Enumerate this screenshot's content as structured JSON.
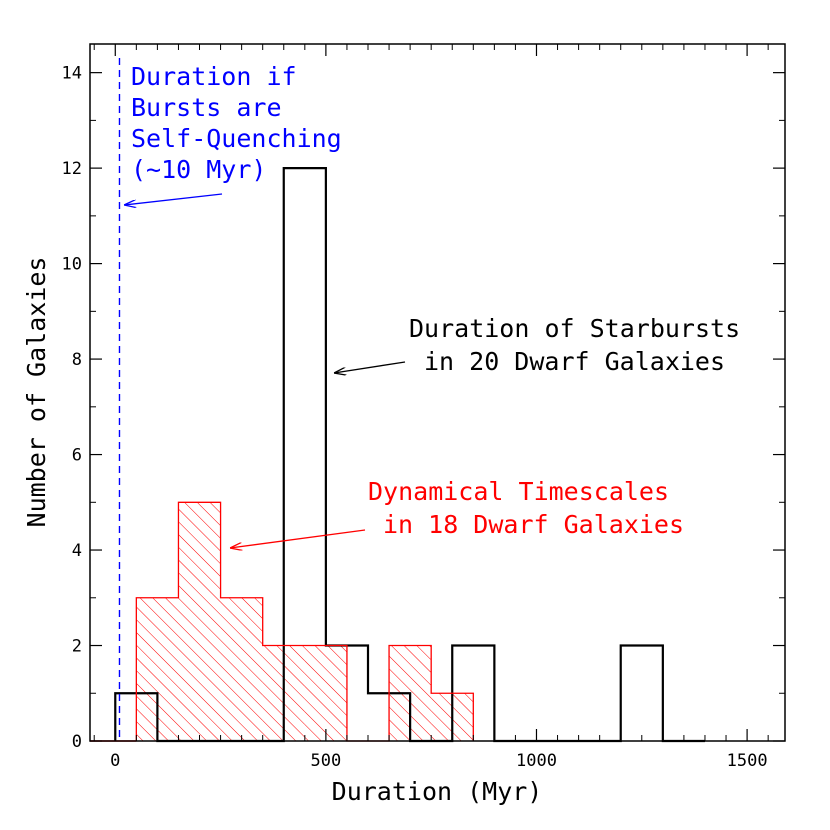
{
  "chart_data": {
    "type": "histogram",
    "title": "",
    "xlabel": "Duration (Myr)",
    "ylabel": "Number of Galaxies",
    "xlim": [
      -60,
      1590
    ],
    "ylim": [
      0,
      14.6
    ],
    "x_ticks": [
      0,
      500,
      1000,
      1500
    ],
    "x_tick_labels": [
      "0",
      "500",
      "1000",
      "1500"
    ],
    "y_ticks": [
      0,
      2,
      4,
      6,
      8,
      10,
      12,
      14
    ],
    "y_tick_labels": [
      "0",
      "2",
      "4",
      "6",
      "8",
      "10",
      "12",
      "14"
    ],
    "bin_width": 100,
    "grid": false,
    "series": [
      {
        "name": "Duration of Starbursts in 20 Dwarf Galaxies",
        "style": "step",
        "color": "#000000",
        "bin_edges": [
          0,
          100,
          200,
          300,
          400,
          500,
          600,
          700,
          800,
          900,
          1000,
          1100,
          1200,
          1300,
          1400
        ],
        "counts": [
          1,
          0,
          0,
          0,
          12,
          2,
          1,
          0,
          2,
          0,
          0,
          0,
          2,
          0
        ]
      },
      {
        "name": "Dynamical Timescales in 18 Dwarf Galaxies",
        "style": "hatched-step",
        "color": "#ff0000",
        "bin_edges": [
          50,
          150,
          250,
          350,
          450,
          550,
          650,
          750,
          850
        ],
        "counts": [
          3,
          5,
          3,
          2,
          2,
          0,
          2,
          1
        ]
      }
    ],
    "reference_line": {
      "x": 10,
      "style": "dashed",
      "color": "#0000ff"
    },
    "annotations": [
      {
        "lines": [
          "Duration if",
          "Bursts are",
          "Self-Quenching",
          "(~10 Myr)"
        ],
        "color": "#0000ff",
        "arrow_to": [
          10,
          11.15
        ]
      },
      {
        "lines": [
          "Duration of Starbursts",
          "in 20 Dwarf Galaxies"
        ],
        "color": "#000000",
        "arrow_to": [
          515,
          7.65
        ]
      },
      {
        "lines": [
          "Dynamical Timescales",
          "in 18 Dwarf Galaxies"
        ],
        "color": "#ff0000",
        "arrow_to": [
          270,
          4.02
        ]
      }
    ]
  }
}
